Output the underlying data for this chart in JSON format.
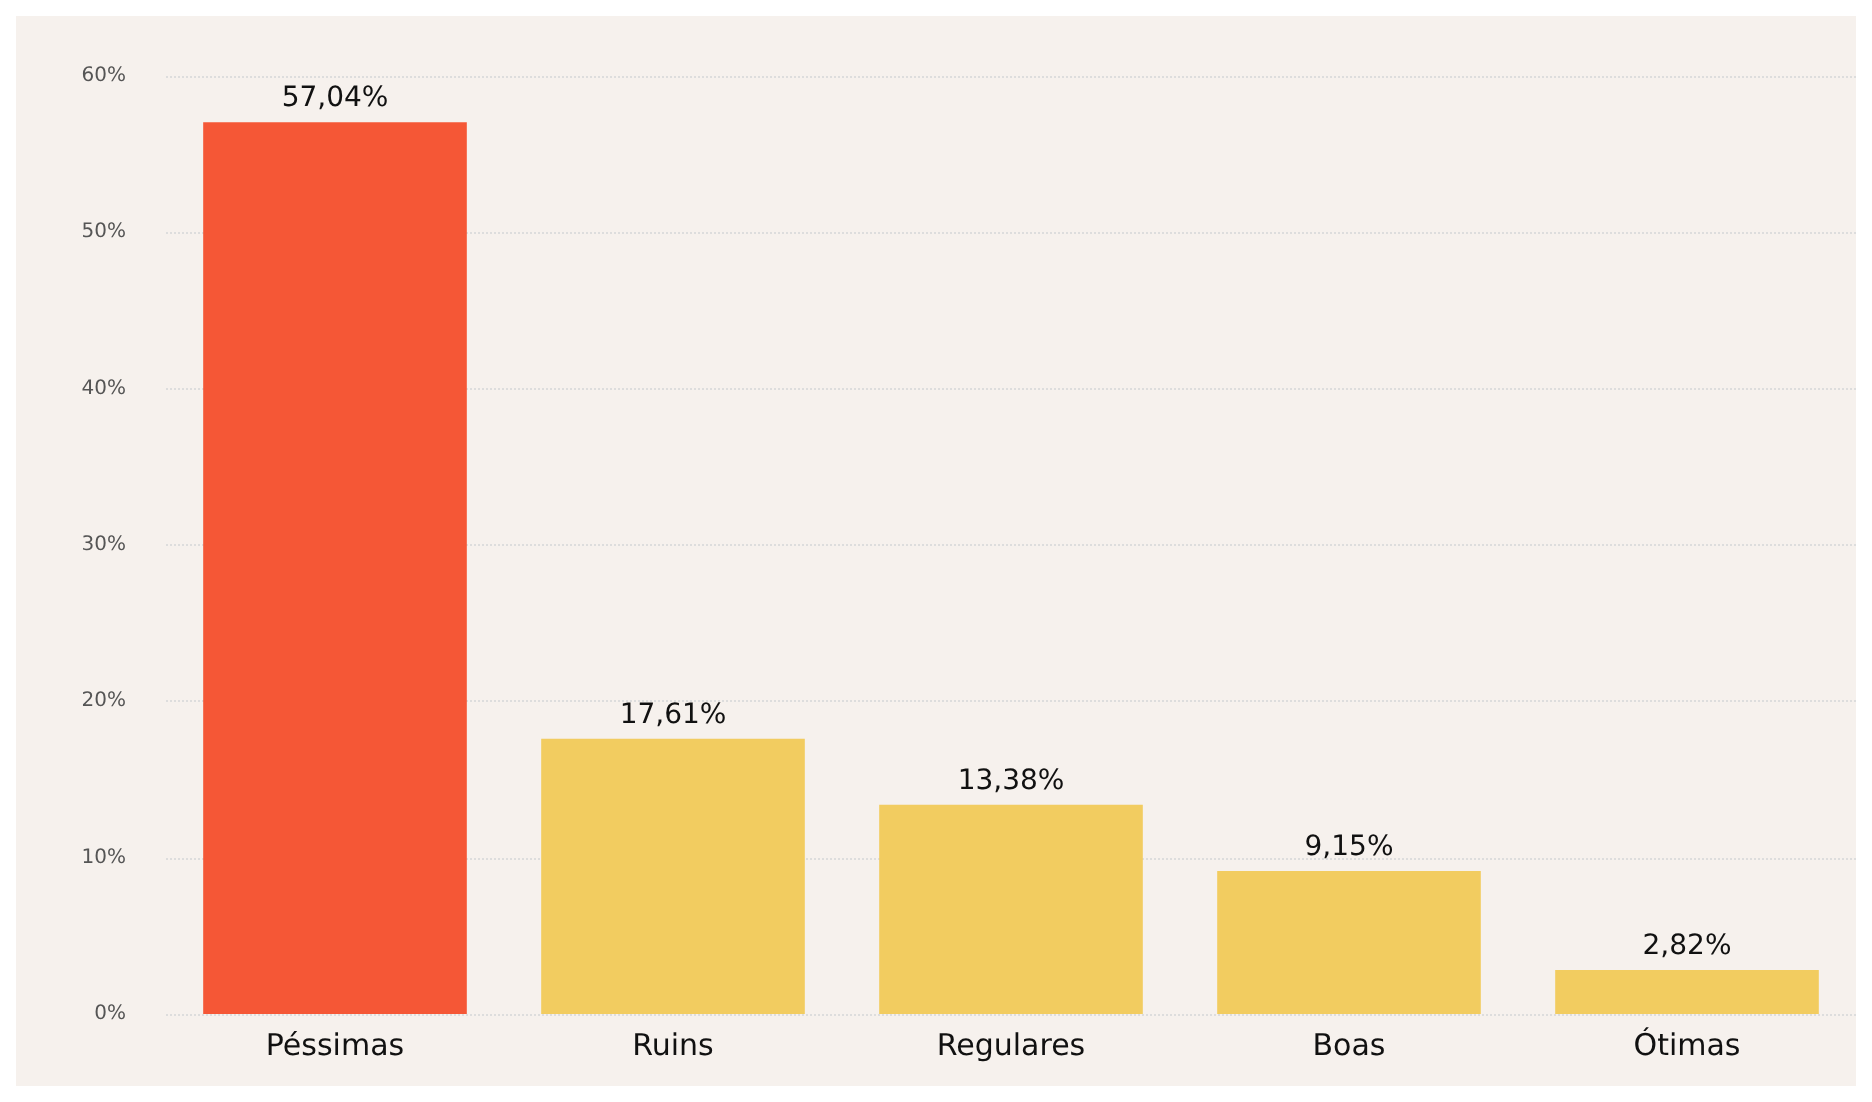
{
  "chart_data": {
    "type": "bar",
    "categories": [
      "Péssimas",
      "Ruins",
      "Regulares",
      "Boas",
      "Ótimas"
    ],
    "values": [
      57.04,
      17.61,
      13.38,
      9.15,
      2.82
    ],
    "colors": [
      "#f55736",
      "#f2cc60",
      "#f2cc60",
      "#f2cc60",
      "#f2cc60"
    ],
    "value_labels": [
      "57,04%",
      "17,61%",
      "13,38%",
      "9,15%",
      "2,82%"
    ],
    "ylim": [
      0,
      60
    ],
    "yticks": [
      {
        "value": 0,
        "label": "0%"
      },
      {
        "value": 10,
        "label": "10%"
      },
      {
        "value": 20,
        "label": "20%"
      },
      {
        "value": 30,
        "label": "30%"
      },
      {
        "value": 40,
        "label": "40%"
      },
      {
        "value": 50,
        "label": "50%"
      },
      {
        "value": 60,
        "label": "60%"
      }
    ],
    "grid": "y"
  }
}
